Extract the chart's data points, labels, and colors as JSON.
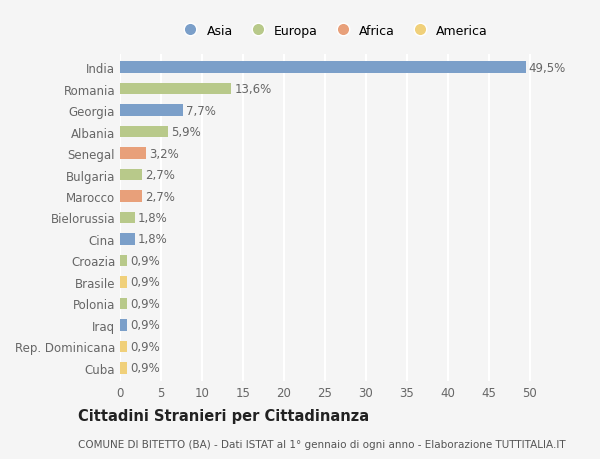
{
  "countries": [
    "India",
    "Romania",
    "Georgia",
    "Albania",
    "Senegal",
    "Bulgaria",
    "Marocco",
    "Bielorussia",
    "Cina",
    "Croazia",
    "Brasile",
    "Polonia",
    "Iraq",
    "Rep. Dominicana",
    "Cuba"
  ],
  "values": [
    49.5,
    13.6,
    7.7,
    5.9,
    3.2,
    2.7,
    2.7,
    1.8,
    1.8,
    0.9,
    0.9,
    0.9,
    0.9,
    0.9,
    0.9
  ],
  "labels": [
    "49,5%",
    "13,6%",
    "7,7%",
    "5,9%",
    "3,2%",
    "2,7%",
    "2,7%",
    "1,8%",
    "1,8%",
    "0,9%",
    "0,9%",
    "0,9%",
    "0,9%",
    "0,9%",
    "0,9%"
  ],
  "colors": [
    "#7b9fc9",
    "#b8c98a",
    "#7b9fc9",
    "#b8c98a",
    "#e8a07a",
    "#b8c98a",
    "#e8a07a",
    "#b8c98a",
    "#7b9fc9",
    "#b8c98a",
    "#f0d07a",
    "#b8c98a",
    "#7b9fc9",
    "#f0d07a",
    "#f0d07a"
  ],
  "legend_labels": [
    "Asia",
    "Europa",
    "Africa",
    "America"
  ],
  "legend_colors": [
    "#7b9fc9",
    "#b8c98a",
    "#e8a07a",
    "#f0d07a"
  ],
  "title": "Cittadini Stranieri per Cittadinanza",
  "subtitle": "COMUNE DI BITETTO (BA) - Dati ISTAT al 1° gennaio di ogni anno - Elaborazione TUTTITALIA.IT",
  "xlim": [
    0,
    52
  ],
  "xticks": [
    0,
    5,
    10,
    15,
    20,
    25,
    30,
    35,
    40,
    45,
    50
  ],
  "background_color": "#f5f5f5",
  "grid_color": "#ffffff",
  "bar_height": 0.55,
  "label_fontsize": 8.5,
  "tick_fontsize": 8.5,
  "title_fontsize": 10.5,
  "subtitle_fontsize": 7.5,
  "label_color": "#666666",
  "tick_color": "#666666"
}
